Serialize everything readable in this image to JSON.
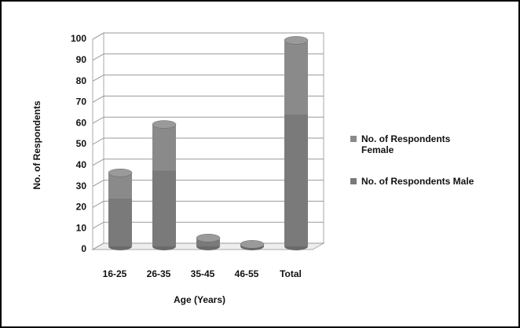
{
  "chart_data": {
    "type": "bar",
    "stacked": true,
    "x_label": "Age (Years)",
    "y_label": "No. of Respondents",
    "categories": [
      "16-25",
      "26-35",
      "35-45",
      "46-55",
      "Total"
    ],
    "series": [
      {
        "name": "No. of Respondents Female",
        "color": "#8a8a8a",
        "values": [
          12,
          22,
          1,
          0,
          35
        ]
      },
      {
        "name": "No. of Respondents Male",
        "color": "#7a7a7a",
        "values": [
          23,
          36,
          3,
          1,
          63
        ]
      }
    ],
    "ylim": [
      0,
      100
    ],
    "yticks": [
      0,
      10,
      20,
      30,
      40,
      50,
      60,
      70,
      80,
      90,
      100
    ],
    "grid": true
  }
}
